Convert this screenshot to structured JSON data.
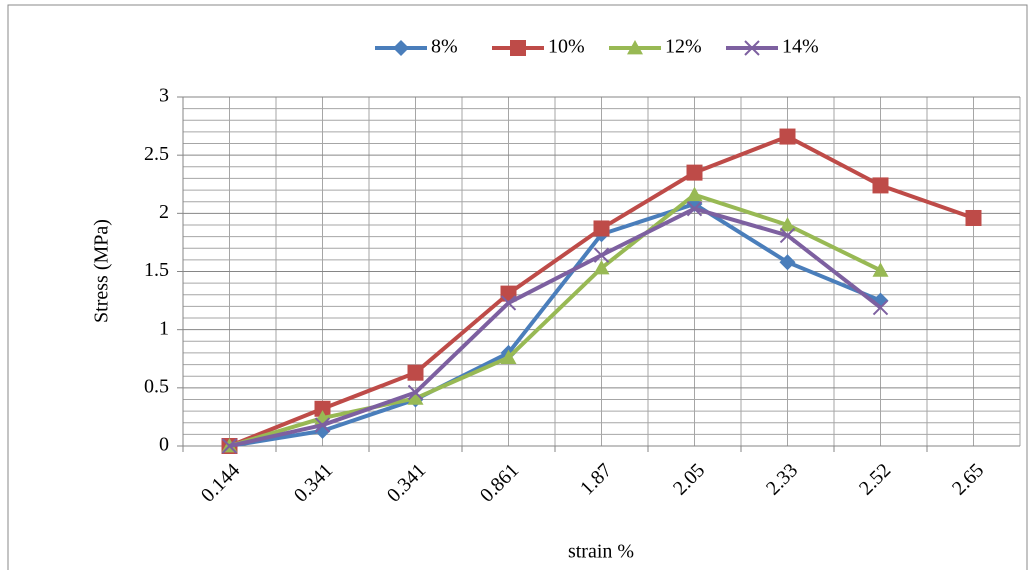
{
  "chart_data": {
    "type": "line",
    "x_label": "strain %",
    "y_label": "Stress (MPa)",
    "categories": [
      "0.144",
      "0.341",
      "0.341",
      "0.861",
      "1.87",
      "2.05",
      "2.33",
      "2.52",
      "2.65"
    ],
    "series": [
      {
        "name": "8%",
        "color": "#4a7ebb",
        "marker": "diamond",
        "values": [
          0,
          0.13,
          0.4,
          0.8,
          1.82,
          2.08,
          1.58,
          1.25,
          null
        ]
      },
      {
        "name": "10%",
        "color": "#be4b48",
        "marker": "square",
        "values": [
          0,
          0.32,
          0.63,
          1.31,
          1.87,
          2.35,
          2.66,
          2.24,
          1.96
        ]
      },
      {
        "name": "12%",
        "color": "#98b954",
        "marker": "triangle",
        "values": [
          0,
          0.24,
          0.41,
          0.76,
          1.53,
          2.16,
          1.9,
          1.51,
          null
        ]
      },
      {
        "name": "14%",
        "color": "#7d60a0",
        "marker": "x",
        "values": [
          0,
          0.18,
          0.46,
          1.23,
          1.64,
          2.04,
          1.81,
          1.19,
          null
        ]
      }
    ],
    "ylim": [
      0,
      3
    ],
    "yticks": [
      0,
      0.5,
      1,
      1.5,
      2,
      2.5,
      3
    ],
    "y_minor_ticks": [
      0.1,
      0.2,
      0.3,
      0.4,
      0.6,
      0.7,
      0.8,
      0.9,
      1.1,
      1.2,
      1.3,
      1.4,
      1.6,
      1.7,
      1.8,
      1.9,
      2.1,
      2.2,
      2.3,
      2.4,
      2.6,
      2.7,
      2.8,
      2.9
    ],
    "grid": true,
    "legend": "top"
  }
}
